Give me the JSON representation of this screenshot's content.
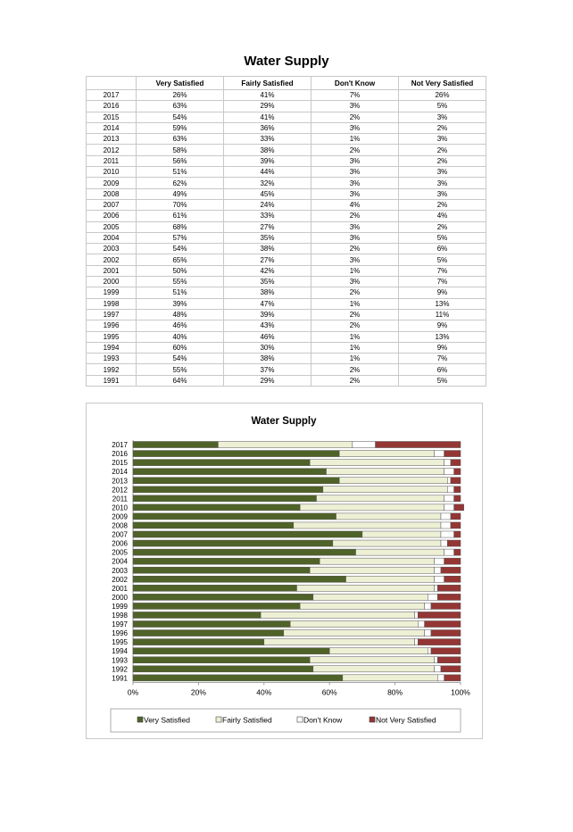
{
  "title": "Water Supply",
  "table": {
    "headers": [
      "",
      "Very Satisfied",
      "Fairly Satisfied",
      "Don't Know",
      "Not Very Satisfied"
    ],
    "rows": [
      [
        "2017",
        "26%",
        "41%",
        "7%",
        "26%"
      ],
      [
        "2016",
        "63%",
        "29%",
        "3%",
        "5%"
      ],
      [
        "2015",
        "54%",
        "41%",
        "2%",
        "3%"
      ],
      [
        "2014",
        "59%",
        "36%",
        "3%",
        "2%"
      ],
      [
        "2013",
        "63%",
        "33%",
        "1%",
        "3%"
      ],
      [
        "2012",
        "58%",
        "38%",
        "2%",
        "2%"
      ],
      [
        "2011",
        "56%",
        "39%",
        "3%",
        "2%"
      ],
      [
        "2010",
        "51%",
        "44%",
        "3%",
        "3%"
      ],
      [
        "2009",
        "62%",
        "32%",
        "3%",
        "3%"
      ],
      [
        "2008",
        "49%",
        "45%",
        "3%",
        "3%"
      ],
      [
        "2007",
        "70%",
        "24%",
        "4%",
        "2%"
      ],
      [
        "2006",
        "61%",
        "33%",
        "2%",
        "4%"
      ],
      [
        "2005",
        "68%",
        "27%",
        "3%",
        "2%"
      ],
      [
        "2004",
        "57%",
        "35%",
        "3%",
        "5%"
      ],
      [
        "2003",
        "54%",
        "38%",
        "2%",
        "6%"
      ],
      [
        "2002",
        "65%",
        "27%",
        "3%",
        "5%"
      ],
      [
        "2001",
        "50%",
        "42%",
        "1%",
        "7%"
      ],
      [
        "2000",
        "55%",
        "35%",
        "3%",
        "7%"
      ],
      [
        "1999",
        "51%",
        "38%",
        "2%",
        "9%"
      ],
      [
        "1998",
        "39%",
        "47%",
        "1%",
        "13%"
      ],
      [
        "1997",
        "48%",
        "39%",
        "2%",
        "11%"
      ],
      [
        "1996",
        "46%",
        "43%",
        "2%",
        "9%"
      ],
      [
        "1995",
        "40%",
        "46%",
        "1%",
        "13%"
      ],
      [
        "1994",
        "60%",
        "30%",
        "1%",
        "9%"
      ],
      [
        "1993",
        "54%",
        "38%",
        "1%",
        "7%"
      ],
      [
        "1992",
        "55%",
        "37%",
        "2%",
        "6%"
      ],
      [
        "1991",
        "64%",
        "29%",
        "2%",
        "5%"
      ]
    ]
  },
  "chart_data": {
    "type": "bar",
    "orientation": "horizontal",
    "stacked": "100%",
    "title": "Water Supply",
    "xlim": [
      0,
      100
    ],
    "x_ticks": [
      "0%",
      "20%",
      "40%",
      "60%",
      "80%",
      "100%"
    ],
    "legend_position": "bottom",
    "categories": [
      "2017",
      "2016",
      "2015",
      "2014",
      "2013",
      "2012",
      "2011",
      "2010",
      "2009",
      "2008",
      "2007",
      "2006",
      "2005",
      "2004",
      "2003",
      "2002",
      "2001",
      "2000",
      "1999",
      "1998",
      "1997",
      "1996",
      "1995",
      "1994",
      "1993",
      "1992",
      "1991"
    ],
    "series": [
      {
        "name": "Very Satisfied",
        "color": "#4f6228",
        "values": [
          26,
          63,
          54,
          59,
          63,
          58,
          56,
          51,
          62,
          49,
          70,
          61,
          68,
          57,
          54,
          65,
          50,
          55,
          51,
          39,
          48,
          46,
          40,
          60,
          54,
          55,
          64
        ]
      },
      {
        "name": "Fairly Satisfied",
        "color": "#eef0d5",
        "values": [
          41,
          29,
          41,
          36,
          33,
          38,
          39,
          44,
          32,
          45,
          24,
          33,
          27,
          35,
          38,
          27,
          42,
          35,
          38,
          47,
          39,
          43,
          46,
          30,
          38,
          37,
          29
        ]
      },
      {
        "name": "Don't Know",
        "color": "#ffffff",
        "values": [
          7,
          3,
          2,
          3,
          1,
          2,
          3,
          3,
          3,
          3,
          4,
          2,
          3,
          3,
          2,
          3,
          1,
          3,
          2,
          1,
          2,
          2,
          1,
          1,
          1,
          2,
          2
        ]
      },
      {
        "name": "Not Very Satisfied",
        "color": "#943634",
        "values": [
          26,
          5,
          3,
          2,
          3,
          2,
          2,
          3,
          3,
          3,
          2,
          4,
          2,
          5,
          6,
          5,
          7,
          7,
          9,
          13,
          11,
          9,
          13,
          9,
          7,
          6,
          5
        ]
      }
    ]
  }
}
